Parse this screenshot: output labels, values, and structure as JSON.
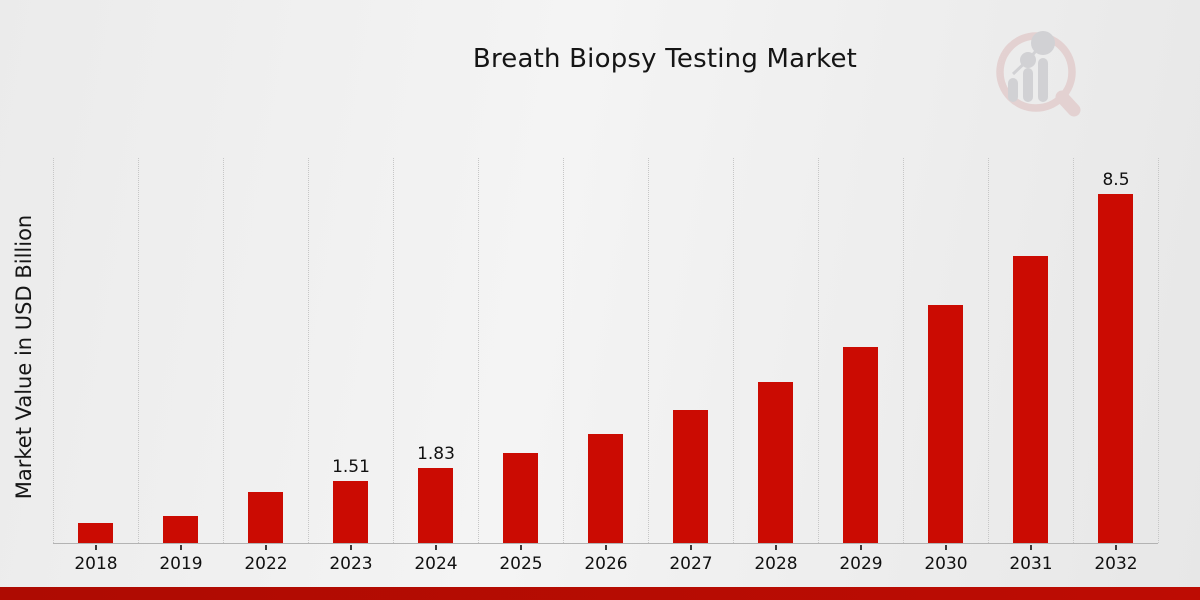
{
  "header": {
    "title": "Breath Biopsy Testing Market"
  },
  "axes": {
    "y_label": "Market Value in USD Billion"
  },
  "logo": {
    "name": "magnifier-bar-chart-watermark-logo"
  },
  "colors": {
    "bar": "#cb0b02",
    "footer_strip": "#b50b02",
    "background": "#eeeeee"
  },
  "chart_data": {
    "type": "bar",
    "title": "Breath Biopsy Testing Market",
    "xlabel": "",
    "ylabel": "Market Value in USD Billion",
    "categories": [
      "2018",
      "2019",
      "2022",
      "2023",
      "2024",
      "2025",
      "2026",
      "2027",
      "2028",
      "2029",
      "2030",
      "2031",
      "2032"
    ],
    "values": [
      0.49,
      0.66,
      1.24,
      1.51,
      1.83,
      2.19,
      2.66,
      3.24,
      3.92,
      4.77,
      5.8,
      7.0,
      8.5
    ],
    "data_labels": [
      "",
      "",
      "",
      "1.51",
      "1.83",
      "",
      "",
      "",
      "",
      "",
      "",
      "",
      "8.5"
    ],
    "bar_color": "#cb0b02",
    "ylim": [
      0,
      9.4
    ],
    "grid": "vertical-dotted-category-boundaries",
    "legend": "none",
    "y_axis_ticks_visible": false
  }
}
